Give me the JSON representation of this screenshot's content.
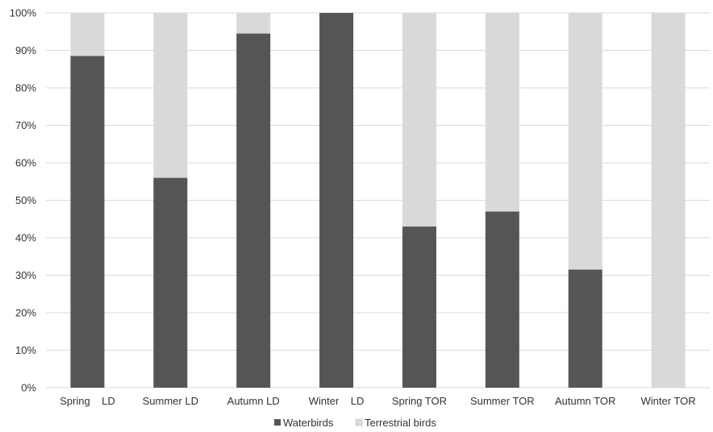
{
  "chart_data": {
    "type": "bar",
    "stacked": true,
    "categories": [
      "Spring    LD",
      "Summer LD",
      "Autumn LD",
      "Winter    LD",
      "Spring TOR",
      "Summer TOR",
      "Autumn TOR",
      "Winter TOR"
    ],
    "series": [
      {
        "name": "Waterbirds",
        "color": "#555555",
        "values": [
          88.5,
          56,
          94.5,
          100,
          43,
          47,
          31.5,
          0
        ]
      },
      {
        "name": "Terrestrial birds",
        "color": "#d9d9d9",
        "values": [
          11.5,
          44,
          5.5,
          0,
          57,
          53,
          68.5,
          100
        ]
      }
    ],
    "yticks": [
      "0%",
      "10%",
      "20%",
      "30%",
      "40%",
      "50%",
      "60%",
      "70%",
      "80%",
      "90%",
      "100%"
    ],
    "ylim": [
      0,
      100
    ],
    "grid": true,
    "legend_position": "bottom"
  }
}
